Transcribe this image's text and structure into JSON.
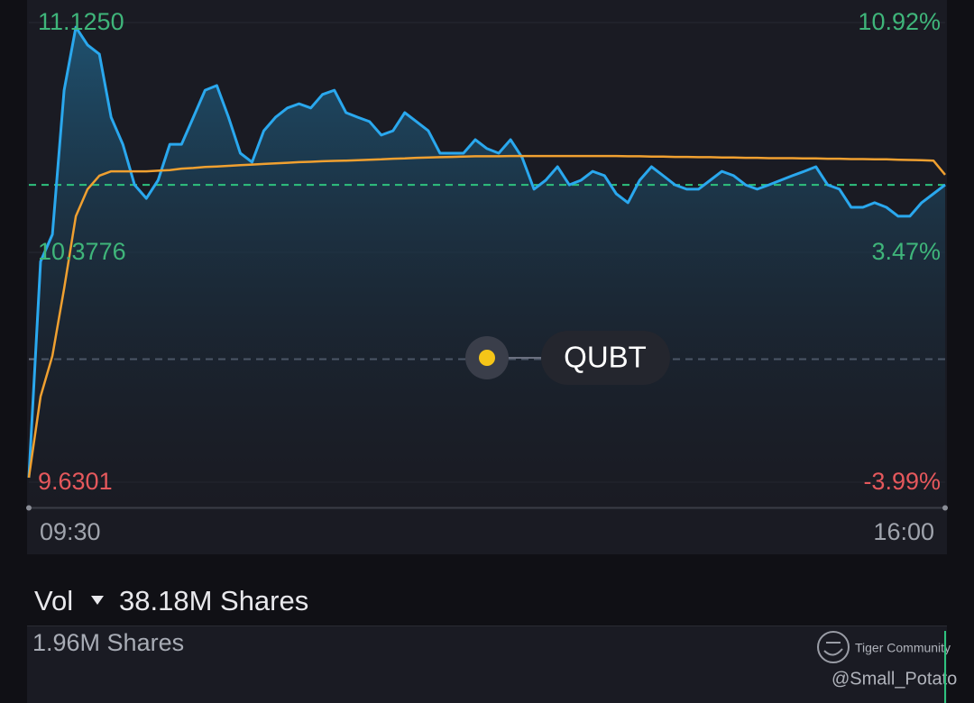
{
  "chart_data": {
    "type": "line",
    "symbol": "QUBT",
    "x": [
      "09:30",
      "09:35",
      "09:40",
      "09:45",
      "09:50",
      "09:55",
      "10:00",
      "10:05",
      "10:10",
      "10:15",
      "10:20",
      "10:25",
      "10:30",
      "10:35",
      "10:40",
      "10:45",
      "10:50",
      "10:55",
      "11:00",
      "11:05",
      "11:10",
      "11:15",
      "11:20",
      "11:25",
      "11:30",
      "11:35",
      "11:40",
      "11:45",
      "11:50",
      "11:55",
      "12:00",
      "12:05",
      "12:10",
      "12:15",
      "12:20",
      "12:25",
      "12:30",
      "12:35",
      "12:40",
      "12:45",
      "12:50",
      "12:55",
      "13:00",
      "13:05",
      "13:10",
      "13:15",
      "13:20",
      "13:25",
      "13:30",
      "13:35",
      "13:40",
      "13:45",
      "13:50",
      "13:55",
      "14:00",
      "14:05",
      "14:10",
      "14:15",
      "14:20",
      "14:25",
      "14:30",
      "14:35",
      "14:40",
      "14:45",
      "14:50",
      "14:55",
      "15:00",
      "15:05",
      "15:10",
      "15:15",
      "15:20",
      "15:25",
      "15:30",
      "15:35",
      "15:40",
      "15:45",
      "15:50",
      "15:55",
      "16:00"
    ],
    "series": [
      {
        "color": "#2aa8ee",
        "values": [
          9.645,
          10.348,
          10.436,
          10.905,
          11.11,
          11.052,
          11.022,
          10.817,
          10.729,
          10.597,
          10.553,
          10.612,
          10.729,
          10.729,
          10.817,
          10.905,
          10.92,
          10.817,
          10.7,
          10.671,
          10.773,
          10.817,
          10.847,
          10.861,
          10.847,
          10.891,
          10.905,
          10.832,
          10.817,
          10.803,
          10.759,
          10.773,
          10.832,
          10.803,
          10.773,
          10.7,
          10.7,
          10.7,
          10.744,
          10.715,
          10.7,
          10.744,
          10.685,
          10.583,
          10.612,
          10.656,
          10.597,
          10.612,
          10.641,
          10.627,
          10.568,
          10.539,
          10.612,
          10.656,
          10.627,
          10.597,
          10.583,
          10.583,
          10.612,
          10.641,
          10.627,
          10.597,
          10.583,
          10.597,
          10.612,
          10.627,
          10.641,
          10.656,
          10.597,
          10.583,
          10.524,
          10.524,
          10.539,
          10.524,
          10.495,
          10.495,
          10.539,
          10.568,
          10.597
        ]
      },
      {
        "color": "#f0a030",
        "values": [
          9.645,
          9.909,
          10.041,
          10.26,
          10.495,
          10.583,
          10.627,
          10.641,
          10.641,
          10.641,
          10.641,
          10.643,
          10.645,
          10.65,
          10.652,
          10.655,
          10.657,
          10.659,
          10.661,
          10.663,
          10.665,
          10.667,
          10.669,
          10.671,
          10.672,
          10.674,
          10.675,
          10.676,
          10.677,
          10.679,
          10.68,
          10.682,
          10.683,
          10.685,
          10.686,
          10.687,
          10.688,
          10.689,
          10.69,
          10.69,
          10.69,
          10.691,
          10.691,
          10.691,
          10.691,
          10.691,
          10.691,
          10.691,
          10.691,
          10.691,
          10.691,
          10.69,
          10.69,
          10.689,
          10.689,
          10.688,
          10.688,
          10.687,
          10.687,
          10.686,
          10.686,
          10.685,
          10.685,
          10.684,
          10.684,
          10.684,
          10.683,
          10.683,
          10.682,
          10.682,
          10.681,
          10.681,
          10.68,
          10.68,
          10.679,
          10.678,
          10.677,
          10.676,
          10.63
        ]
      }
    ],
    "xlim": [
      "09:30",
      "16:00"
    ],
    "xticks": [
      "09:30",
      "16:00"
    ],
    "ylim": [
      9.6301,
      11.125
    ],
    "yticks": [
      {
        "value": 11.125,
        "label": "11.1250"
      },
      10.3776,
      9.6301
    ],
    "y2lim": [
      -3.99,
      10.92
    ],
    "y2ticks": [
      {
        "value": 10.92,
        "label": "10.92%"
      },
      {
        "value": 3.47,
        "label": "3.47%"
      },
      {
        "value": -3.99,
        "label": "-3.99%"
      }
    ],
    "grid": true,
    "volume_label": "Vol",
    "volume_total": "38.18M Shares",
    "volume_current": "1.96M Shares",
    "watermark_brand": "Tiger Community",
    "watermark_user": "@Small_Potato"
  }
}
